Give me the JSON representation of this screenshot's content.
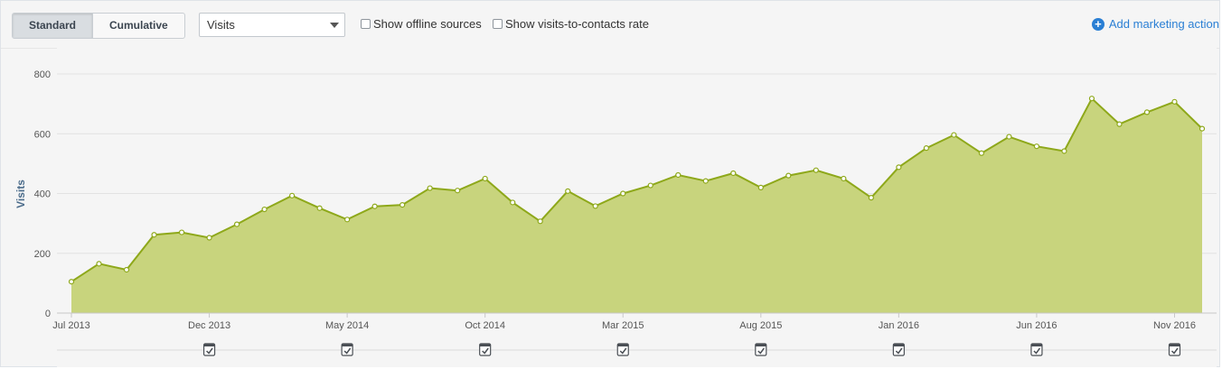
{
  "toolbar": {
    "standard_label": "Standard",
    "cumulative_label": "Cumulative",
    "metric_select": "Visits",
    "offline_label": "Show offline sources",
    "rate_label": "Show visits-to-contacts rate",
    "add_action_label": "Add marketing action"
  },
  "colors": {
    "area_fill": "#c8d47d",
    "line": "#8ea81a",
    "accent": "#2a7fd4",
    "axis_label": "#4a6b8a"
  },
  "chart_data": {
    "type": "area",
    "ylabel": "Visits",
    "xlabel": "",
    "ylim": [
      0,
      800
    ],
    "yticks": [
      0,
      200,
      400,
      600,
      800
    ],
    "grid": true,
    "x": [
      "Jul 2013",
      "Aug 2013",
      "Sep 2013",
      "Oct 2013",
      "Nov 2013",
      "Dec 2013",
      "Jan 2014",
      "Feb 2014",
      "Mar 2014",
      "Apr 2014",
      "May 2014",
      "Jun 2014",
      "Jul 2014",
      "Aug 2014",
      "Sep 2014",
      "Oct 2014",
      "Nov 2014",
      "Dec 2014",
      "Jan 2015",
      "Feb 2015",
      "Mar 2015",
      "Apr 2015",
      "May 2015",
      "Jun 2015",
      "Jul 2015",
      "Aug 2015",
      "Sep 2015",
      "Oct 2015",
      "Nov 2015",
      "Dec 2015",
      "Jan 2016",
      "Feb 2016",
      "Mar 2016",
      "Apr 2016",
      "May 2016",
      "Jun 2016",
      "Jul 2016",
      "Aug 2016",
      "Sep 2016",
      "Oct 2016",
      "Nov 2016",
      "Dec 2016"
    ],
    "x_tick_labels": [
      "Jul 2013",
      "Dec 2013",
      "May 2014",
      "Oct 2014",
      "Mar 2015",
      "Aug 2015",
      "Jan 2016",
      "Jun 2016",
      "Nov 2016"
    ],
    "series": [
      {
        "values": [
          105,
          165,
          145,
          262,
          270,
          252,
          297,
          347,
          393,
          351,
          313,
          357,
          362,
          418,
          410,
          450,
          370,
          307,
          408,
          358,
          400,
          427,
          462,
          442,
          468,
          420,
          460,
          478,
          450,
          386,
          488,
          552,
          596,
          535,
          590,
          558,
          542,
          718,
          632,
          672,
          707,
          617
        ]
      }
    ],
    "annotations": {
      "type": "marketing-action-icon",
      "at": [
        "Dec 2013",
        "May 2014",
        "Oct 2014",
        "Mar 2015",
        "Aug 2015",
        "Jan 2016",
        "Jun 2016",
        "Nov 2016"
      ]
    }
  }
}
